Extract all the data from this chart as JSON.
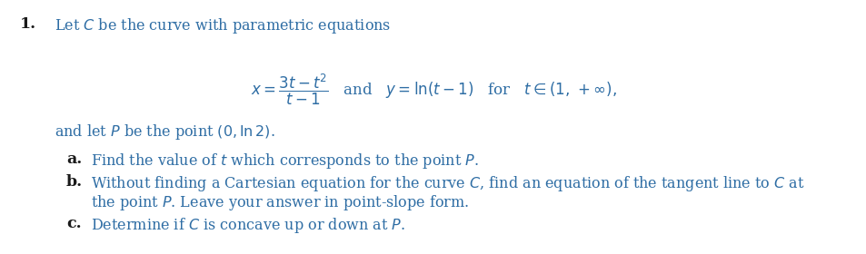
{
  "background_color": "#ffffff",
  "text_color": "#2e6da4",
  "label_color": "#1a1a1a",
  "figsize": [
    9.54,
    2.8
  ],
  "dpi": 100,
  "intro_text": "Let $C$ be the curve with parametric equations",
  "point_line": "and let $P$ be the point $(0, \\ln 2)$.",
  "part_a_text": "Find the value of $t$ which corresponds to the point $P$.",
  "part_b_text1": "Without finding a Cartesian equation for the curve $C$, find an equation of the tangent line to $C$ at",
  "part_b_text2": "the point $P$. Leave your answer in point-slope form.",
  "part_c_text": "Determine if $C$ is concave up or down at $P$.",
  "font_size": 11.5,
  "label_font_size": 12.5
}
